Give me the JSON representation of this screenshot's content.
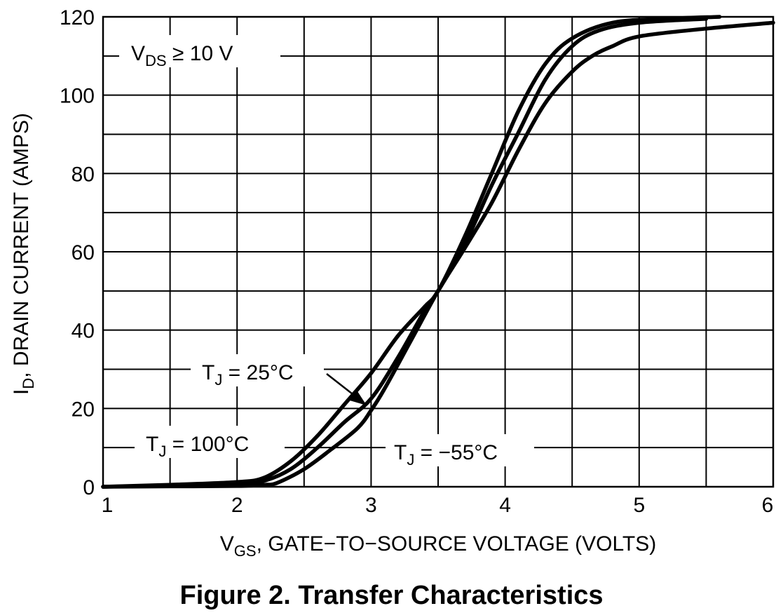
{
  "caption": "Figure 2. Transfer Characteristics",
  "chart_data": {
    "type": "line",
    "xlabel": {
      "main": "V",
      "sub": "GS",
      "rest": ", GATE−TO−SOURCE VOLTAGE (VOLTS)"
    },
    "ylabel": {
      "main": "I",
      "sub": "D",
      "rest": ", DRAIN CURRENT (AMPS)"
    },
    "xlim": [
      1,
      6
    ],
    "ylim": [
      0,
      120
    ],
    "grid": true,
    "x_ticks": [
      1,
      2,
      3,
      4,
      5,
      6
    ],
    "y_ticks": [
      0,
      20,
      40,
      60,
      80,
      100,
      120
    ],
    "x_tick_labels": [
      "1",
      "2",
      "3",
      "4",
      "5",
      "6"
    ],
    "y_tick_labels": [
      "0",
      "20",
      "40",
      "60",
      "80",
      "100",
      "120"
    ],
    "annotations": {
      "condition": {
        "main": "V",
        "sub": "DS",
        "rest": " ≥ 10 V"
      },
      "t25": {
        "main": "T",
        "sub": "J",
        "rest": " = 25°C"
      },
      "t100": {
        "main": "T",
        "sub": "J",
        "rest": " = 100°C"
      },
      "tm55": {
        "main": "T",
        "sub": "J",
        "rest": " = −55°C"
      }
    },
    "series": [
      {
        "name": "TJ = −55°C",
        "points": [
          [
            1.0,
            0
          ],
          [
            1.5,
            0.1
          ],
          [
            2.0,
            0.2
          ],
          [
            2.2,
            0.5
          ],
          [
            2.3,
            1
          ],
          [
            2.5,
            4.5
          ],
          [
            2.7,
            9.5
          ],
          [
            2.9,
            15
          ],
          [
            3.0,
            19.5
          ],
          [
            3.1,
            25
          ],
          [
            3.3,
            37.5
          ],
          [
            3.5,
            50
          ],
          [
            3.7,
            61
          ],
          [
            3.9,
            72.5
          ],
          [
            4.1,
            86
          ],
          [
            4.3,
            98
          ],
          [
            4.5,
            106
          ],
          [
            4.65,
            110
          ],
          [
            4.8,
            112.5
          ],
          [
            5.0,
            115
          ],
          [
            5.5,
            117
          ],
          [
            6.0,
            118.5
          ]
        ]
      },
      {
        "name": "TJ = 25°C",
        "points": [
          [
            1.0,
            0
          ],
          [
            1.5,
            0.3
          ],
          [
            2.0,
            0.7
          ],
          [
            2.2,
            1.5
          ],
          [
            2.4,
            4.5
          ],
          [
            2.6,
            10
          ],
          [
            2.8,
            16.5
          ],
          [
            3.0,
            22.5
          ],
          [
            3.2,
            33
          ],
          [
            3.4,
            45
          ],
          [
            3.5,
            50
          ],
          [
            3.7,
            62
          ],
          [
            3.9,
            77
          ],
          [
            4.1,
            90.5
          ],
          [
            4.3,
            104
          ],
          [
            4.5,
            112.5
          ],
          [
            4.7,
            116.5
          ],
          [
            5.0,
            118.5
          ],
          [
            5.5,
            119.5
          ]
        ]
      },
      {
        "name": "TJ = 100°C",
        "points": [
          [
            1.0,
            0
          ],
          [
            1.5,
            0.5
          ],
          [
            2.0,
            1.2
          ],
          [
            2.2,
            2.3
          ],
          [
            2.4,
            6.5
          ],
          [
            2.6,
            13
          ],
          [
            2.8,
            21
          ],
          [
            3.0,
            29
          ],
          [
            3.2,
            38.5
          ],
          [
            3.4,
            46
          ],
          [
            3.5,
            50
          ],
          [
            3.7,
            64
          ],
          [
            3.9,
            80
          ],
          [
            4.1,
            96
          ],
          [
            4.3,
            108
          ],
          [
            4.5,
            114.5
          ],
          [
            4.8,
            118.5
          ],
          [
            5.2,
            119.5
          ],
          [
            5.6,
            120
          ]
        ]
      }
    ]
  }
}
